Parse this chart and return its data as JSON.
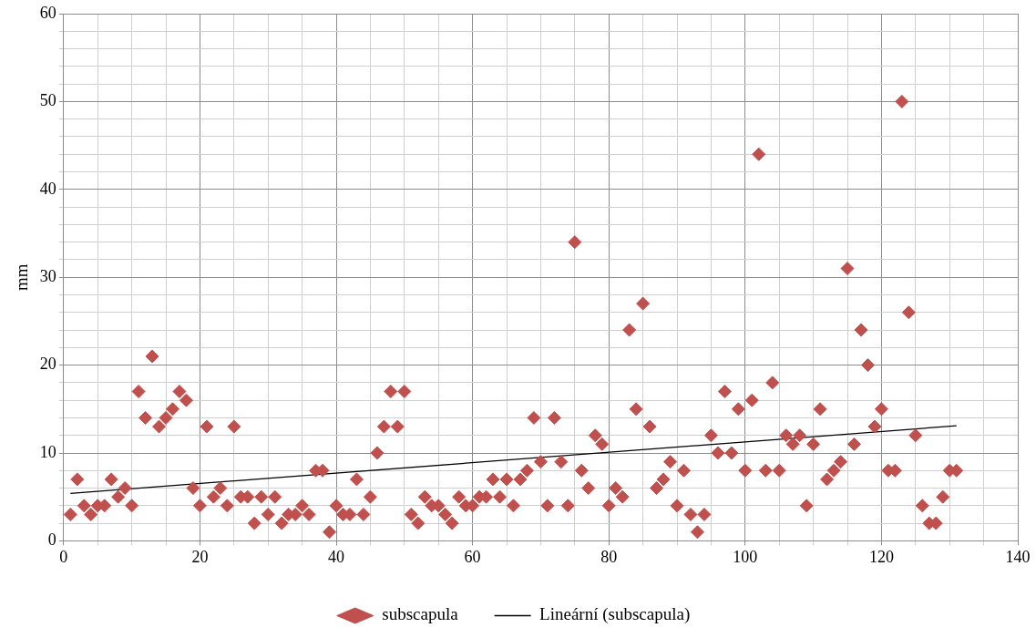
{
  "chart_data": {
    "type": "scatter",
    "ylabel": "mm",
    "xlim": [
      0,
      140
    ],
    "ylim": [
      0,
      60
    ],
    "xticks": [
      0,
      {
        "value": 5,
        "label": null
      },
      {
        "value": 10,
        "label": null
      },
      {
        "value": 15,
        "label": null
      },
      20,
      {
        "value": 25,
        "label": null
      },
      {
        "value": 30,
        "label": null
      },
      {
        "value": 35,
        "label": null
      },
      40,
      {
        "value": 45,
        "label": null
      },
      {
        "value": 50,
        "label": null
      },
      {
        "value": 55,
        "label": null
      },
      60,
      {
        "value": 65,
        "label": null
      },
      {
        "value": 70,
        "label": null
      },
      {
        "value": 75,
        "label": null
      },
      80,
      {
        "value": 85,
        "label": null
      },
      {
        "value": 90,
        "label": null
      },
      {
        "value": 95,
        "label": null
      },
      100,
      {
        "value": 105,
        "label": null
      },
      {
        "value": 110,
        "label": null
      },
      {
        "value": 115,
        "label": null
      },
      120,
      {
        "value": 125,
        "label": null
      },
      {
        "value": 130,
        "label": null
      },
      {
        "value": 135,
        "label": null
      },
      140
    ],
    "yticks": [
      0,
      {
        "value": 2,
        "label": null
      },
      {
        "value": 4,
        "label": null
      },
      {
        "value": 6,
        "label": null
      },
      {
        "value": 8,
        "label": null
      },
      10,
      {
        "value": 12,
        "label": null
      },
      {
        "value": 14,
        "label": null
      },
      {
        "value": 16,
        "label": null
      },
      {
        "value": 18,
        "label": null
      },
      20,
      {
        "value": 22,
        "label": null
      },
      {
        "value": 24,
        "label": null
      },
      {
        "value": 26,
        "label": null
      },
      {
        "value": 28,
        "label": null
      },
      30,
      {
        "value": 32,
        "label": null
      },
      {
        "value": 34,
        "label": null
      },
      {
        "value": 36,
        "label": null
      },
      {
        "value": 38,
        "label": null
      },
      40,
      {
        "value": 42,
        "label": null
      },
      {
        "value": 44,
        "label": null
      },
      {
        "value": 46,
        "label": null
      },
      {
        "value": 48,
        "label": null
      },
      50,
      {
        "value": 52,
        "label": null
      },
      {
        "value": 54,
        "label": null
      },
      {
        "value": 56,
        "label": null
      },
      {
        "value": 58,
        "label": null
      },
      60
    ],
    "grid": true,
    "legend": "bottom",
    "marker": "diamond",
    "series": [
      {
        "name": "subscapula",
        "color": "#c0504d",
        "x": [
          1,
          2,
          3,
          4,
          5,
          6,
          7,
          8,
          9,
          10,
          11,
          12,
          13,
          14,
          15,
          16,
          17,
          18,
          19,
          20,
          21,
          22,
          23,
          24,
          25,
          26,
          27,
          28,
          29,
          30,
          31,
          32,
          33,
          34,
          35,
          36,
          37,
          38,
          39,
          40,
          41,
          42,
          43,
          44,
          45,
          46,
          47,
          48,
          49,
          50,
          51,
          52,
          53,
          54,
          55,
          56,
          57,
          58,
          59,
          60,
          61,
          62,
          63,
          64,
          65,
          66,
          67,
          68,
          69,
          70,
          71,
          72,
          73,
          74,
          75,
          76,
          77,
          78,
          79,
          80,
          81,
          82,
          83,
          84,
          85,
          86,
          87,
          88,
          89,
          90,
          91,
          92,
          93,
          94,
          95,
          96,
          97,
          98,
          99,
          100,
          101,
          102,
          103,
          104,
          105,
          106,
          107,
          108,
          109,
          110,
          111,
          112,
          113,
          114,
          115,
          116,
          117,
          118,
          119,
          120,
          121,
          122,
          123,
          124,
          125,
          126,
          127,
          128,
          129,
          130,
          131
        ],
        "values": [
          3,
          7,
          4,
          3,
          4,
          4,
          7,
          5,
          6,
          4,
          17,
          14,
          21,
          13,
          14,
          15,
          17,
          16,
          6,
          4,
          13,
          5,
          6,
          4,
          13,
          5,
          5,
          2,
          5,
          3,
          5,
          2,
          3,
          3,
          4,
          3,
          8,
          8,
          1,
          4,
          3,
          3,
          7,
          3,
          5,
          10,
          13,
          17,
          13,
          17,
          3,
          2,
          5,
          4,
          4,
          3,
          2,
          5,
          4,
          4,
          5,
          5,
          7,
          5,
          7,
          4,
          7,
          8,
          14,
          9,
          4,
          14,
          9,
          4,
          34,
          8,
          6,
          12,
          11,
          4,
          6,
          5,
          24,
          15,
          27,
          13,
          6,
          7,
          9,
          4,
          8,
          3,
          1,
          3,
          12,
          10,
          17,
          10,
          15,
          8,
          16,
          44,
          8,
          18,
          8,
          12,
          11,
          12,
          4,
          11,
          15,
          7,
          8,
          9,
          31,
          11,
          24,
          20,
          13,
          15,
          8,
          8,
          50,
          26,
          12,
          4,
          2,
          2,
          5,
          8,
          8
        ]
      },
      {
        "name": "Lineární (subscapula)",
        "type": "line",
        "color": "#000000",
        "marker": "none",
        "x": [
          1,
          131
        ],
        "values": [
          5.4,
          13.1
        ]
      }
    ]
  }
}
